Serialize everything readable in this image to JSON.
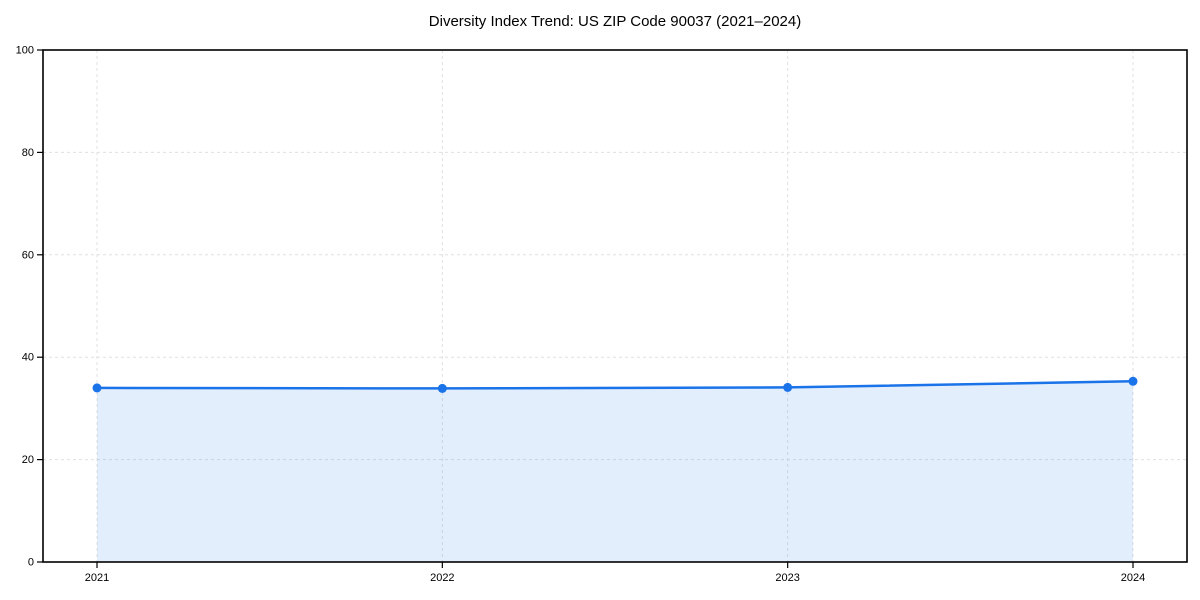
{
  "figure": {
    "title": "Diversity Index Trend: US ZIP Code 90037 (2021–2024)"
  },
  "chart_data": {
    "type": "area",
    "title": "Diversity Index Trend: US ZIP Code 90037 (2021–2024)",
    "categories": [
      "2021",
      "2022",
      "2023",
      "2024"
    ],
    "series": [
      {
        "name": "Diversity Index",
        "values": [
          34.0,
          33.9,
          34.1,
          35.3
        ]
      }
    ],
    "xlabel": "",
    "ylabel": "",
    "ylim": [
      0,
      100
    ],
    "yticks": [
      0,
      20,
      40,
      60,
      80,
      100
    ],
    "grid": "dashed-both-axes",
    "legend": "none",
    "marker": "circle",
    "colors": {
      "line": "#1a73e8",
      "marker": "#1a73e8",
      "fill": "rgba(26, 115, 232, 0.12)",
      "grid": "#e0e0e0",
      "axis": "#000000",
      "text": "#000000",
      "background": "#ffffff"
    }
  }
}
